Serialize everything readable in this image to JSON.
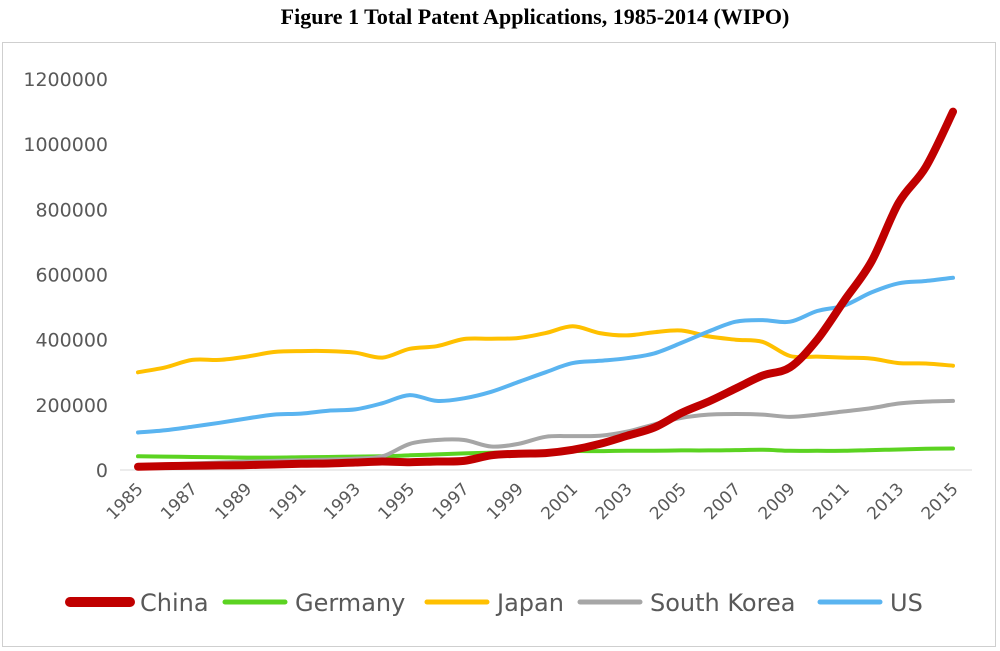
{
  "chart_data": {
    "type": "line",
    "title": "Figure 1 Total Patent Applications, 1985-2014 (WIPO)",
    "xlabel": "",
    "ylabel": "",
    "x": [
      1985,
      1986,
      1987,
      1988,
      1989,
      1990,
      1991,
      1992,
      1993,
      1994,
      1995,
      1996,
      1997,
      1998,
      1999,
      2000,
      2001,
      2002,
      2003,
      2004,
      2005,
      2006,
      2007,
      2008,
      2009,
      2010,
      2011,
      2012,
      2013,
      2014,
      2015
    ],
    "x_tick_labels": [
      "1985",
      "1987",
      "1989",
      "1991",
      "1993",
      "1995",
      "1997",
      "1999",
      "2001",
      "2003",
      "2005",
      "2007",
      "2009",
      "2011",
      "2013",
      "2015"
    ],
    "y_tick_labels": [
      "0",
      "200000",
      "400000",
      "600000",
      "800000",
      "1000000",
      "1200000"
    ],
    "ylim": [
      0,
      1200000
    ],
    "grid": false,
    "legend_position": "bottom",
    "series": [
      {
        "name": "China",
        "color": "#c00000",
        "values": [
          10000,
          12000,
          13000,
          14000,
          15000,
          17000,
          19000,
          20000,
          23000,
          26000,
          24000,
          26000,
          28000,
          45000,
          50000,
          52000,
          62000,
          80000,
          105000,
          130000,
          175000,
          210000,
          250000,
          290000,
          315000,
          400000,
          520000,
          640000,
          820000,
          930000,
          1100000
        ]
      },
      {
        "name": "Germany",
        "color": "#5bd321",
        "values": [
          42000,
          41000,
          40000,
          39000,
          38000,
          38000,
          39000,
          40000,
          41000,
          42000,
          45000,
          48000,
          51000,
          53000,
          54000,
          55000,
          58000,
          58000,
          59000,
          59000,
          60000,
          60000,
          61000,
          62000,
          59000,
          59000,
          59000,
          61000,
          63000,
          65000,
          66000
        ]
      },
      {
        "name": "Japan",
        "color": "#ffc000",
        "values": [
          300000,
          315000,
          338000,
          338000,
          348000,
          362000,
          365000,
          365000,
          360000,
          345000,
          372000,
          380000,
          402000,
          403000,
          405000,
          420000,
          441000,
          420000,
          413000,
          423000,
          428000,
          410000,
          400000,
          393000,
          350000,
          348000,
          345000,
          342000,
          328000,
          327000,
          320000
        ]
      },
      {
        "name": "South Korea",
        "color": "#a6a6a6",
        "values": [
          15000,
          17000,
          20000,
          23000,
          26000,
          28000,
          30000,
          32000,
          35000,
          42000,
          80000,
          92000,
          92000,
          72000,
          80000,
          102000,
          104000,
          105000,
          118000,
          140000,
          160000,
          170000,
          172000,
          170000,
          163000,
          170000,
          180000,
          190000,
          204000,
          210000,
          212000
        ]
      },
      {
        "name": "US",
        "color": "#5ab4f0",
        "values": [
          115000,
          122000,
          133000,
          145000,
          158000,
          170000,
          173000,
          182000,
          186000,
          205000,
          230000,
          212000,
          220000,
          240000,
          270000,
          300000,
          328000,
          335000,
          343000,
          358000,
          390000,
          425000,
          455000,
          460000,
          455000,
          488000,
          505000,
          545000,
          573000,
          580000,
          590000
        ]
      }
    ]
  }
}
